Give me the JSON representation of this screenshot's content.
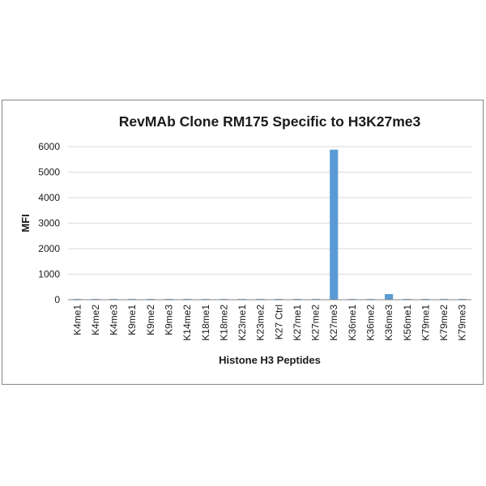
{
  "chart_data": {
    "type": "bar",
    "title": "RevMAb Clone RM175 Specific to H3K27me3",
    "xlabel": "Histone H3 Peptides",
    "ylabel": "MFI",
    "ylim": [
      0,
      6000
    ],
    "yticks": [
      0,
      1000,
      2000,
      3000,
      4000,
      5000,
      6000
    ],
    "grid": true,
    "legend": "none",
    "bar_color": "#5b9bd5",
    "categories": [
      "K4me1",
      "K4me2",
      "K4me3",
      "K9me1",
      "K9me2",
      "K9me3",
      "K14me2",
      "K18me1",
      "K18me2",
      "K23me1",
      "K23me2",
      "K27 Ctrl",
      "K27me1",
      "K27me2",
      "K27me3",
      "K36me1",
      "K36me2",
      "K36me3",
      "K56me1",
      "K79me1",
      "K79me2",
      "K79me3"
    ],
    "values": [
      30,
      30,
      30,
      30,
      30,
      30,
      30,
      30,
      30,
      30,
      30,
      30,
      30,
      30,
      5880,
      30,
      30,
      220,
      30,
      30,
      30,
      30
    ]
  }
}
